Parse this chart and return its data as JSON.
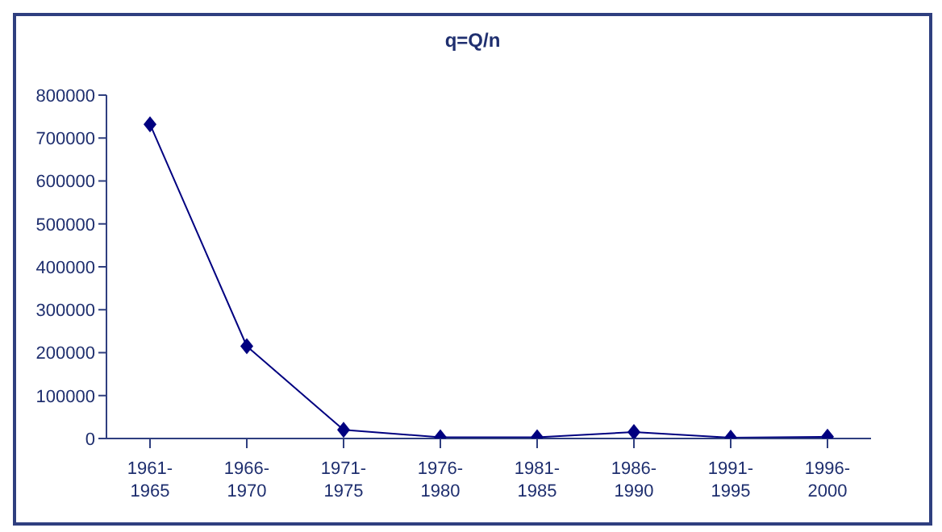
{
  "chart_data": {
    "type": "line",
    "title": "q=Q/n",
    "categories": [
      "1961-1965",
      "1966-1970",
      "1971-1975",
      "1976-1980",
      "1981-1985",
      "1986-1990",
      "1991-1995",
      "1996-2000"
    ],
    "series": [
      {
        "color": "#000080",
        "values": [
          732000,
          215000,
          20000,
          3000,
          3000,
          15000,
          2000,
          4000
        ]
      }
    ],
    "ylim": [
      0,
      800000
    ],
    "yticks": [
      0,
      100000,
      200000,
      300000,
      400000,
      500000,
      600000,
      700000,
      800000
    ],
    "grid": false,
    "marker": "diamond",
    "line_style": "solid"
  }
}
